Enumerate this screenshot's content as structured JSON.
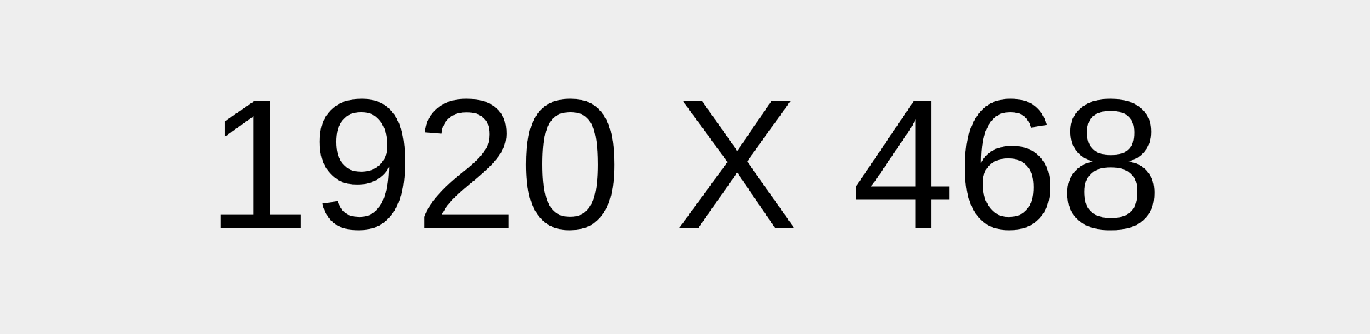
{
  "placeholder": {
    "text": "1920 X 468",
    "background_color": "#eeeeee",
    "text_color": "#000000"
  }
}
